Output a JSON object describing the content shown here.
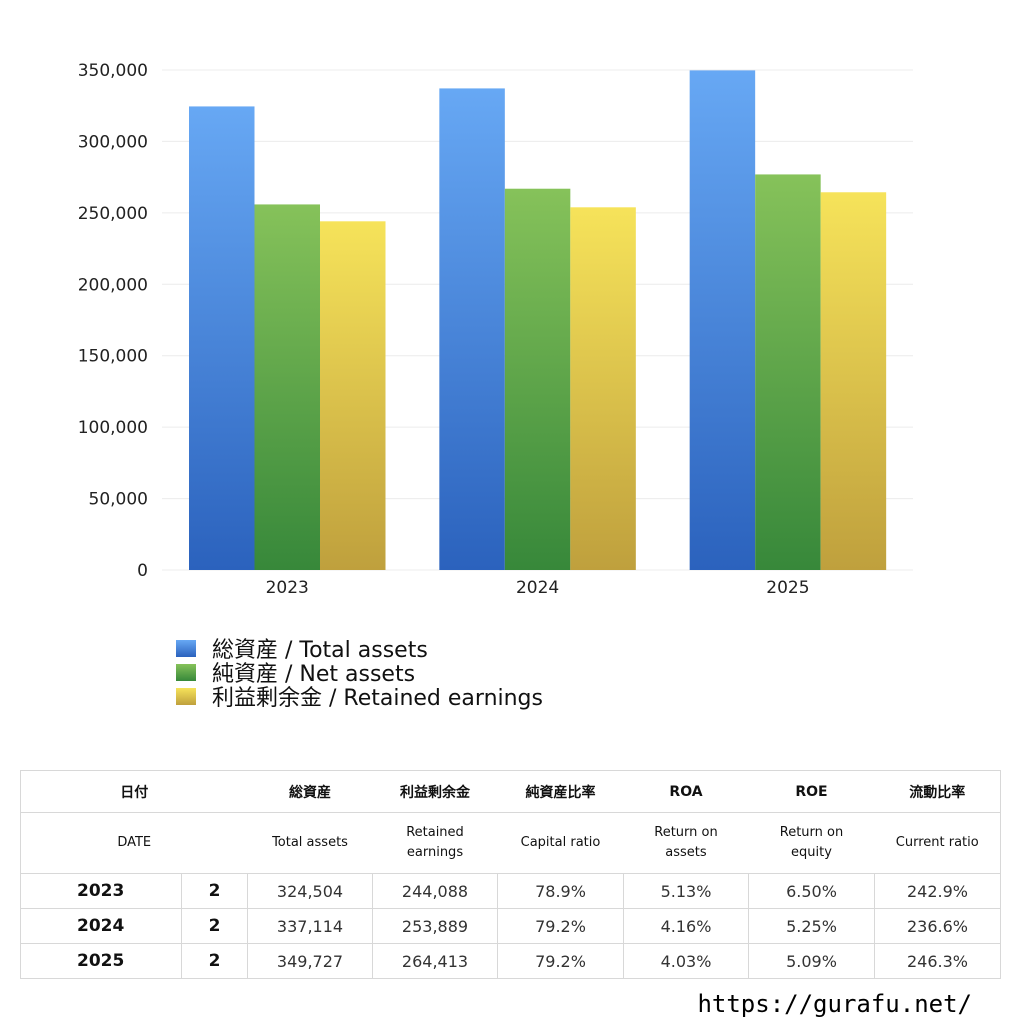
{
  "colors": {
    "total_assets": "#4f8fe6",
    "net_assets": "#5cab47",
    "retained_earnings": "#e4c948"
  },
  "chart_data": {
    "type": "bar",
    "categories": [
      "2023",
      "2024",
      "2025"
    ],
    "series": [
      {
        "name": "総資産 / Total assets",
        "values": [
          324504,
          337114,
          349727
        ]
      },
      {
        "name": "純資産 / Net assets",
        "values": [
          255900,
          266900,
          276900
        ]
      },
      {
        "name": "利益剰余金 / Retained earnings",
        "values": [
          244088,
          253889,
          264413
        ]
      }
    ],
    "y_ticks": [
      "0",
      "50,000",
      "100,000",
      "150,000",
      "200,000",
      "250,000",
      "300,000",
      "350,000"
    ],
    "ylim": [
      0,
      350000
    ],
    "grid": true,
    "legend_position": "bottom-left"
  },
  "table": {
    "header_jp": [
      "日付",
      "総資産",
      "利益剰余金",
      "純資産比率",
      "ROA",
      "ROE",
      "流動比率"
    ],
    "header_en": [
      "DATE",
      "Total assets",
      "Retained earnings",
      "Capital ratio",
      "Return on assets",
      "Return on equity",
      "Current ratio"
    ],
    "rows": [
      {
        "year": "2023",
        "count": "2",
        "total_assets": "324,504",
        "retained_earnings": "244,088",
        "capital_ratio": "78.9%",
        "roa": "5.13%",
        "roe": "6.50%",
        "current_ratio": "242.9%"
      },
      {
        "year": "2024",
        "count": "2",
        "total_assets": "337,114",
        "retained_earnings": "253,889",
        "capital_ratio": "79.2%",
        "roa": "4.16%",
        "roe": "5.25%",
        "current_ratio": "236.6%"
      },
      {
        "year": "2025",
        "count": "2",
        "total_assets": "349,727",
        "retained_earnings": "264,413",
        "capital_ratio": "79.2%",
        "roa": "4.03%",
        "roe": "5.09%",
        "current_ratio": "246.3%"
      }
    ]
  },
  "footer": {
    "url": "https://gurafu.net/"
  }
}
